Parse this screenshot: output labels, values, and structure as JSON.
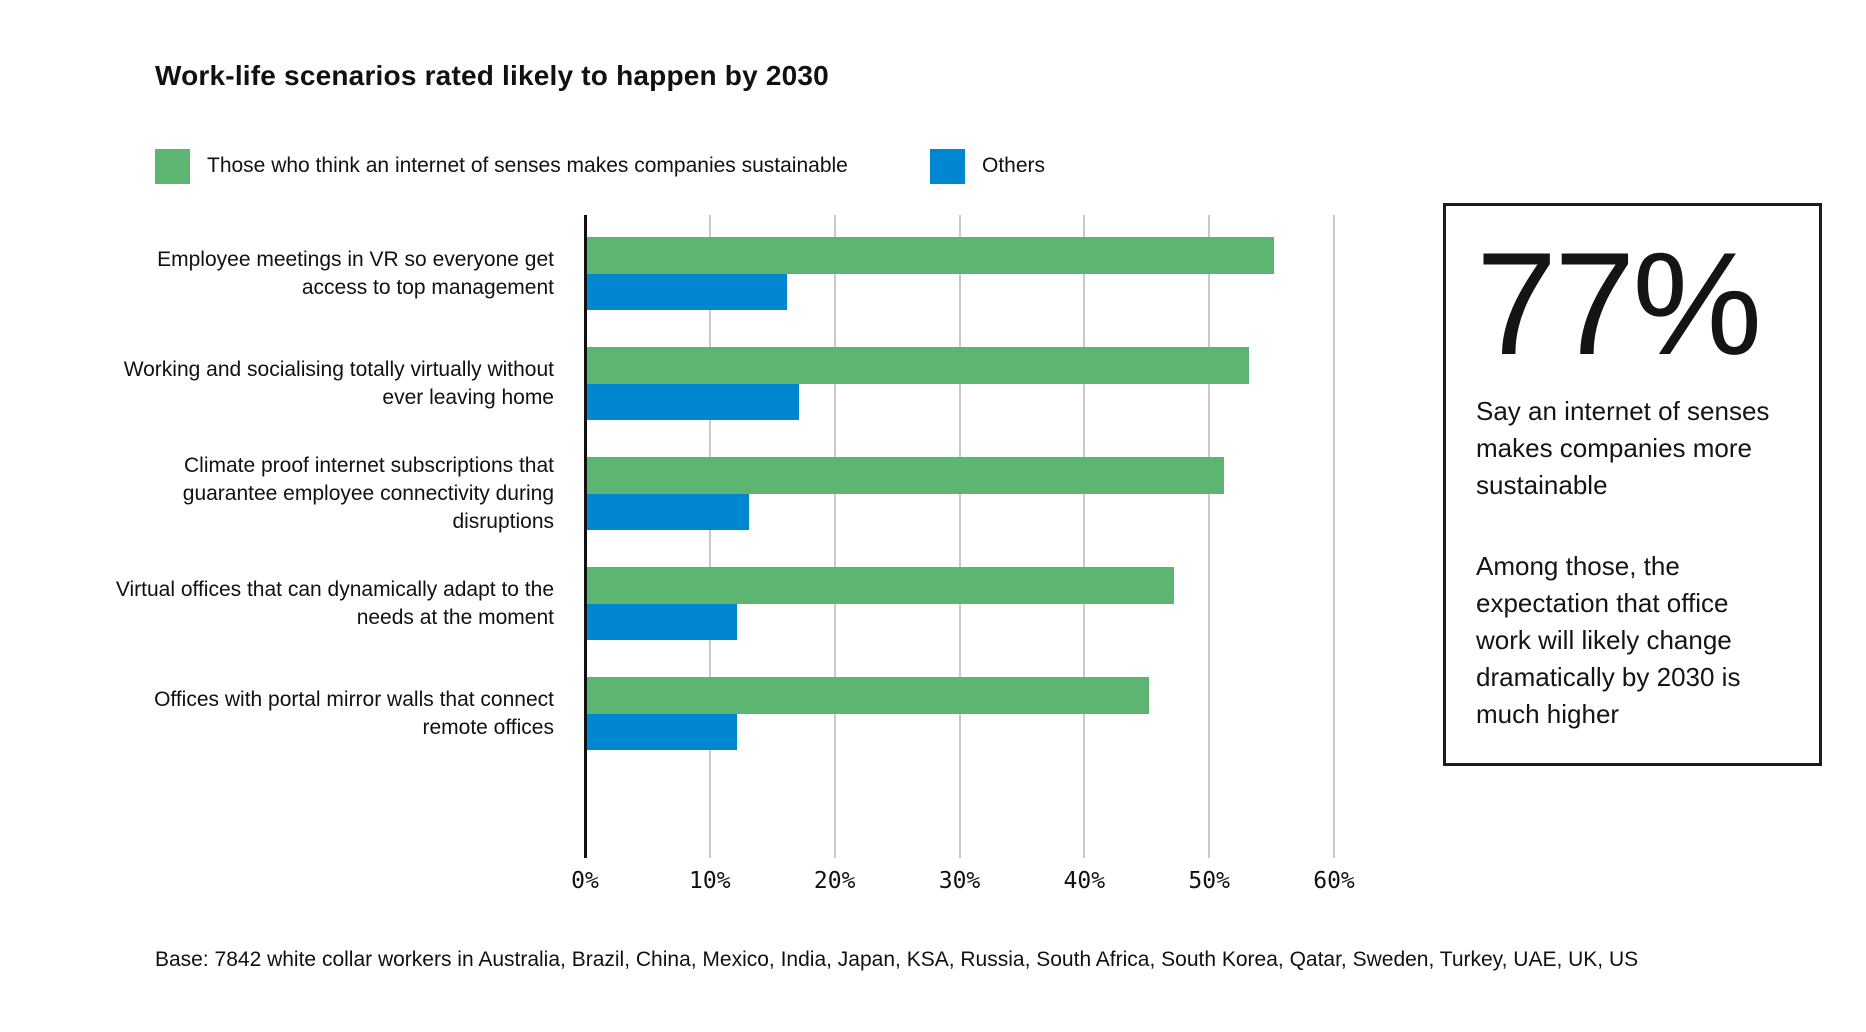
{
  "title": "Work-life scenarios rated likely to happen by 2030",
  "legend": {
    "items": [
      {
        "label": "Those who think an internet of senses makes companies sustainable",
        "color": "#5CB570"
      },
      {
        "label": "Others",
        "color": "#0087D0"
      }
    ]
  },
  "chart_data": {
    "type": "bar",
    "orientation": "horizontal",
    "categories": [
      "Employee meetings in VR so everyone get access to top management",
      "Working and socialising totally virtually without ever leaving home",
      "Climate proof internet subscriptions that guarantee employee connectivity during disruptions",
      "Virtual offices that can dynamically adapt to the needs at the moment",
      "Offices with portal mirror walls that connect remote offices"
    ],
    "series": [
      {
        "name": "Those who think an internet of senses makes companies sustainable",
        "color": "#5CB570",
        "values": [
          55,
          53,
          51,
          47,
          45
        ]
      },
      {
        "name": "Others",
        "color": "#0087D0",
        "values": [
          16,
          17,
          13,
          12,
          12
        ]
      }
    ],
    "x_ticks": [
      "0%",
      "10%",
      "20%",
      "30%",
      "40%",
      "50%",
      "60%"
    ],
    "xlim": [
      0,
      60
    ],
    "grid": "vertical",
    "gridline_color": "#C9C9C9",
    "axis_color": "#111111",
    "legend_position": "top"
  },
  "callout": {
    "stat": "77%",
    "line1": "Say an internet of senses makes companies more sustainable",
    "line2": "Among those, the expectation that office work will likely change dramatically by 2030 is much higher"
  },
  "footnote": "Base: 7842 white collar workers in Australia, Brazil, China, Mexico, India, Japan, KSA, Russia, South Africa, South Korea, Qatar, Sweden, Turkey, UAE, UK, US"
}
